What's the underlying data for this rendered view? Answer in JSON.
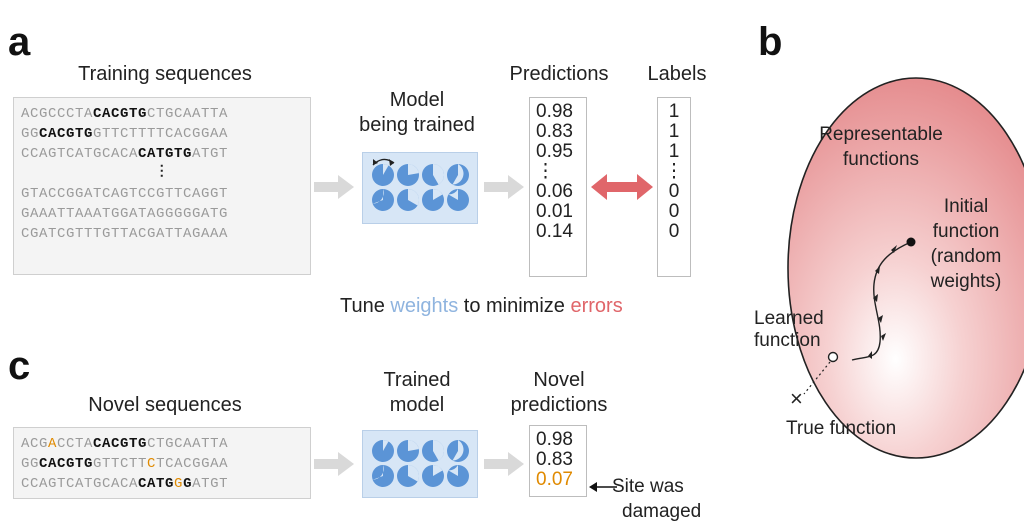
{
  "panels": {
    "a": "a",
    "b": "b",
    "c": "c"
  },
  "panel_a": {
    "training_title": "Training sequences",
    "model_title_line1": "Model",
    "model_title_line2": "being trained",
    "predictions_title": "Predictions",
    "labels_title": "Labels",
    "sequences": [
      [
        {
          "t": "ACGCCCTA",
          "s": "n"
        },
        {
          "t": "CACGTG",
          "s": "h"
        },
        {
          "t": "CTGCAATTA",
          "s": "n"
        }
      ],
      [
        {
          "t": "GG",
          "s": "n"
        },
        {
          "t": "CACGTG",
          "s": "h"
        },
        {
          "t": "GTTCTTTTCACGGAA",
          "s": "n"
        }
      ],
      [
        {
          "t": "CCAGTCATGCACA",
          "s": "n"
        },
        {
          "t": "CATGTG",
          "s": "h"
        },
        {
          "t": "ATGT",
          "s": "n"
        }
      ],
      "dots",
      [
        {
          "t": "GTACCGGATCAGTCCGTTCAGGT",
          "s": "n"
        }
      ],
      [
        {
          "t": "GAAATTAAATGGATAGGGGGATG",
          "s": "n"
        }
      ],
      [
        {
          "t": "CGATCGTTTGTTACGATTAGAAA",
          "s": "n"
        }
      ]
    ],
    "predictions": [
      "0.98",
      "0.83",
      "0.95",
      "⋮",
      "0.06",
      "0.01",
      "0.14"
    ],
    "labels": [
      "1",
      "1",
      "1",
      "⋮",
      "0",
      "0",
      "0"
    ],
    "caption_pre": "Tune ",
    "caption_weights": "weights",
    "caption_mid": " to minimize ",
    "caption_errors": "errors"
  },
  "panel_b": {
    "region_line1": "Representable",
    "region_line2": "functions",
    "initial_line1": "Initial",
    "initial_line2": "function",
    "initial_line3": "(random",
    "initial_line4": "weights)",
    "learned_line1": "Learned",
    "learned_line2": "function",
    "true_marker": "×",
    "true_label": "True function"
  },
  "panel_c": {
    "novel_title": "Novel sequences",
    "trained_line1": "Trained",
    "trained_line2": "model",
    "novel_pred_line1": "Novel",
    "novel_pred_line2": "predictions",
    "sequences": [
      [
        {
          "t": "ACG",
          "s": "n"
        },
        {
          "t": "A",
          "s": "m"
        },
        {
          "t": "CCTA",
          "s": "n"
        },
        {
          "t": "CACGTG",
          "s": "h"
        },
        {
          "t": "CTGCAATTA",
          "s": "n"
        }
      ],
      [
        {
          "t": "GG",
          "s": "n"
        },
        {
          "t": "CACGTG",
          "s": "h"
        },
        {
          "t": "GTTCTT",
          "s": "n"
        },
        {
          "t": "C",
          "s": "m"
        },
        {
          "t": "TCACGGAA",
          "s": "n"
        }
      ],
      [
        {
          "t": "CCAGTCATGCACA",
          "s": "n"
        },
        {
          "t": "CATG",
          "s": "h"
        },
        {
          "t": "G",
          "s": "m"
        },
        {
          "t": "G",
          "s": "h"
        },
        {
          "t": "ATGT",
          "s": "n"
        }
      ]
    ],
    "predictions": [
      "0.98",
      "0.83",
      "0.07"
    ],
    "damaged_line1": "Site was",
    "damaged_line2": "damaged"
  },
  "colors": {
    "highlight_orange": "#e08a00",
    "weights_blue": "#8fb4df",
    "errors_red": "#e0666a",
    "region_pink": "#e79495"
  }
}
